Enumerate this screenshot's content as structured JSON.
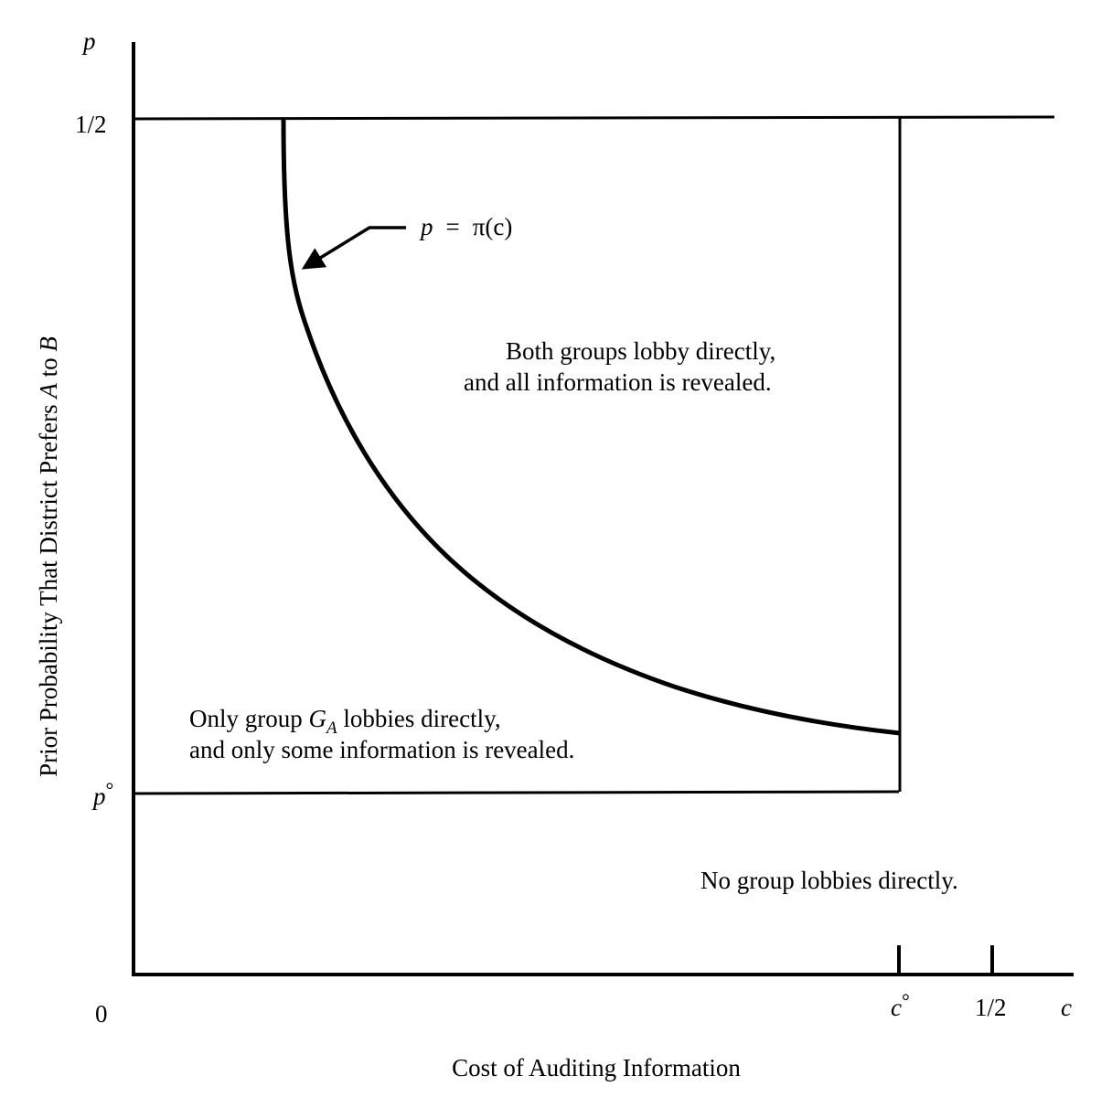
{
  "axes": {
    "y_symbol": "p",
    "x_symbol": "c",
    "origin_label": "0",
    "x_title": "Cost of Auditing Information",
    "y_title_parts": [
      "Prior Probability That District Prefers ",
      "A",
      " to ",
      "B"
    ],
    "y_ticks": {
      "top": "1/2",
      "p0_base": "p",
      "p0_sup": "°"
    },
    "x_ticks": {
      "c0_base": "c",
      "c0_sup": "°",
      "half": "1/2"
    }
  },
  "curve": {
    "label_lhs": "p",
    "label_eq": "=",
    "label_rhs": "π(c)"
  },
  "regions": {
    "both": [
      "Both groups lobby directly,",
      "and all information is revealed."
    ],
    "only_a": {
      "line1_pre": "Only group ",
      "line1_sym": "G",
      "line1_sub": "A",
      "line1_post": " lobbies directly,",
      "line2": "and only some information is revealed."
    },
    "none": "No group lobbies directly."
  },
  "colors": {
    "ink": "#000000",
    "background": "#ffffff"
  }
}
